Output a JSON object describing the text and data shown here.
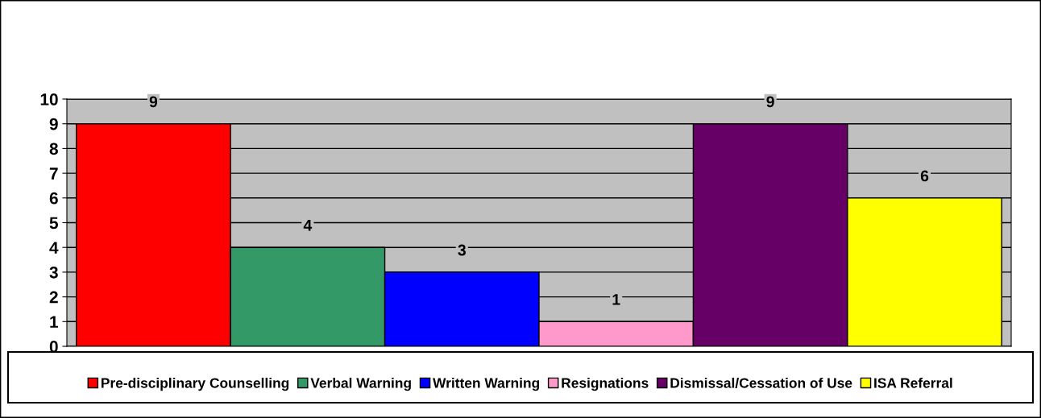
{
  "chart_data": {
    "type": "bar",
    "categories": [
      null
    ],
    "series": [
      {
        "name": "Pre-disciplinary Counselling",
        "color": "#ff0000",
        "values": [
          9
        ]
      },
      {
        "name": "Verbal Warning",
        "color": "#339966",
        "values": [
          4
        ]
      },
      {
        "name": "Written Warning",
        "color": "#0000ff",
        "values": [
          3
        ]
      },
      {
        "name": "Resignations",
        "color": "#ff99cc",
        "values": [
          1
        ]
      },
      {
        "name": "Dismissal/Cessation of Use",
        "color": "#660066",
        "values": [
          9
        ]
      },
      {
        "name": "ISA Referral",
        "color": "#ffff00",
        "values": [
          6
        ]
      }
    ],
    "ylim": [
      0,
      10
    ],
    "yticks": [
      0,
      1,
      2,
      3,
      4,
      5,
      6,
      7,
      8,
      9,
      10
    ],
    "grid": "y",
    "legend": "bottom",
    "data_labels": true
  }
}
